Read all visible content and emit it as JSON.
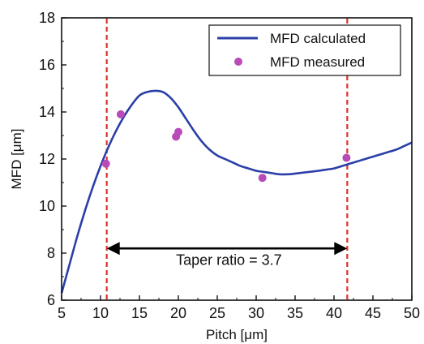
{
  "chart_data": {
    "type": "line",
    "xlabel": "Pitch [μm]",
    "ylabel": "MFD [μm]",
    "xlim": [
      5,
      50
    ],
    "ylim": [
      6,
      18
    ],
    "x_ticks": [
      5,
      10,
      15,
      20,
      25,
      30,
      35,
      40,
      45,
      50
    ],
    "y_ticks": [
      6,
      8,
      10,
      12,
      14,
      16,
      18
    ],
    "grid": false,
    "legend_position": "top-right",
    "series": [
      {
        "name": "MFD calculated",
        "type": "line",
        "color": "#2b3fa8",
        "x": [
          5,
          6,
          7,
          8,
          9,
          10,
          11,
          12,
          13,
          14,
          15,
          16,
          17,
          18,
          19,
          20,
          21,
          22,
          23,
          24,
          25,
          26,
          27,
          28,
          29,
          30,
          31,
          32,
          33,
          34,
          35,
          36,
          37,
          38,
          39,
          40,
          41,
          42,
          43,
          44,
          45,
          46,
          47,
          48,
          49,
          50
        ],
        "y": [
          6.3,
          7.5,
          8.7,
          9.8,
          10.8,
          11.7,
          12.5,
          13.2,
          13.8,
          14.3,
          14.7,
          14.85,
          14.9,
          14.85,
          14.6,
          14.2,
          13.7,
          13.2,
          12.75,
          12.4,
          12.15,
          12.0,
          11.85,
          11.7,
          11.6,
          11.5,
          11.45,
          11.4,
          11.35,
          11.35,
          11.38,
          11.42,
          11.46,
          11.5,
          11.55,
          11.6,
          11.7,
          11.8,
          11.9,
          12.0,
          12.1,
          12.2,
          12.3,
          12.4,
          12.55,
          12.7
        ]
      },
      {
        "name": "MFD measured",
        "type": "scatter",
        "color": "#b84bb8",
        "x": [
          10.7,
          12.6,
          19.7,
          20.0,
          30.8,
          41.6
        ],
        "y": [
          11.8,
          13.9,
          12.95,
          13.15,
          11.2,
          12.05
        ]
      }
    ],
    "vertical_lines": [
      {
        "x": 10.8,
        "color": "#e0302a",
        "style": "dashed"
      },
      {
        "x": 41.7,
        "color": "#e0302a",
        "style": "dashed"
      }
    ],
    "annotations": [
      {
        "text": "Taper ratio = 3.7",
        "x": 26.5,
        "y": 7.7,
        "arrow_from": 10.8,
        "arrow_to": 41.7,
        "arrow_y": 8.2
      }
    ]
  }
}
